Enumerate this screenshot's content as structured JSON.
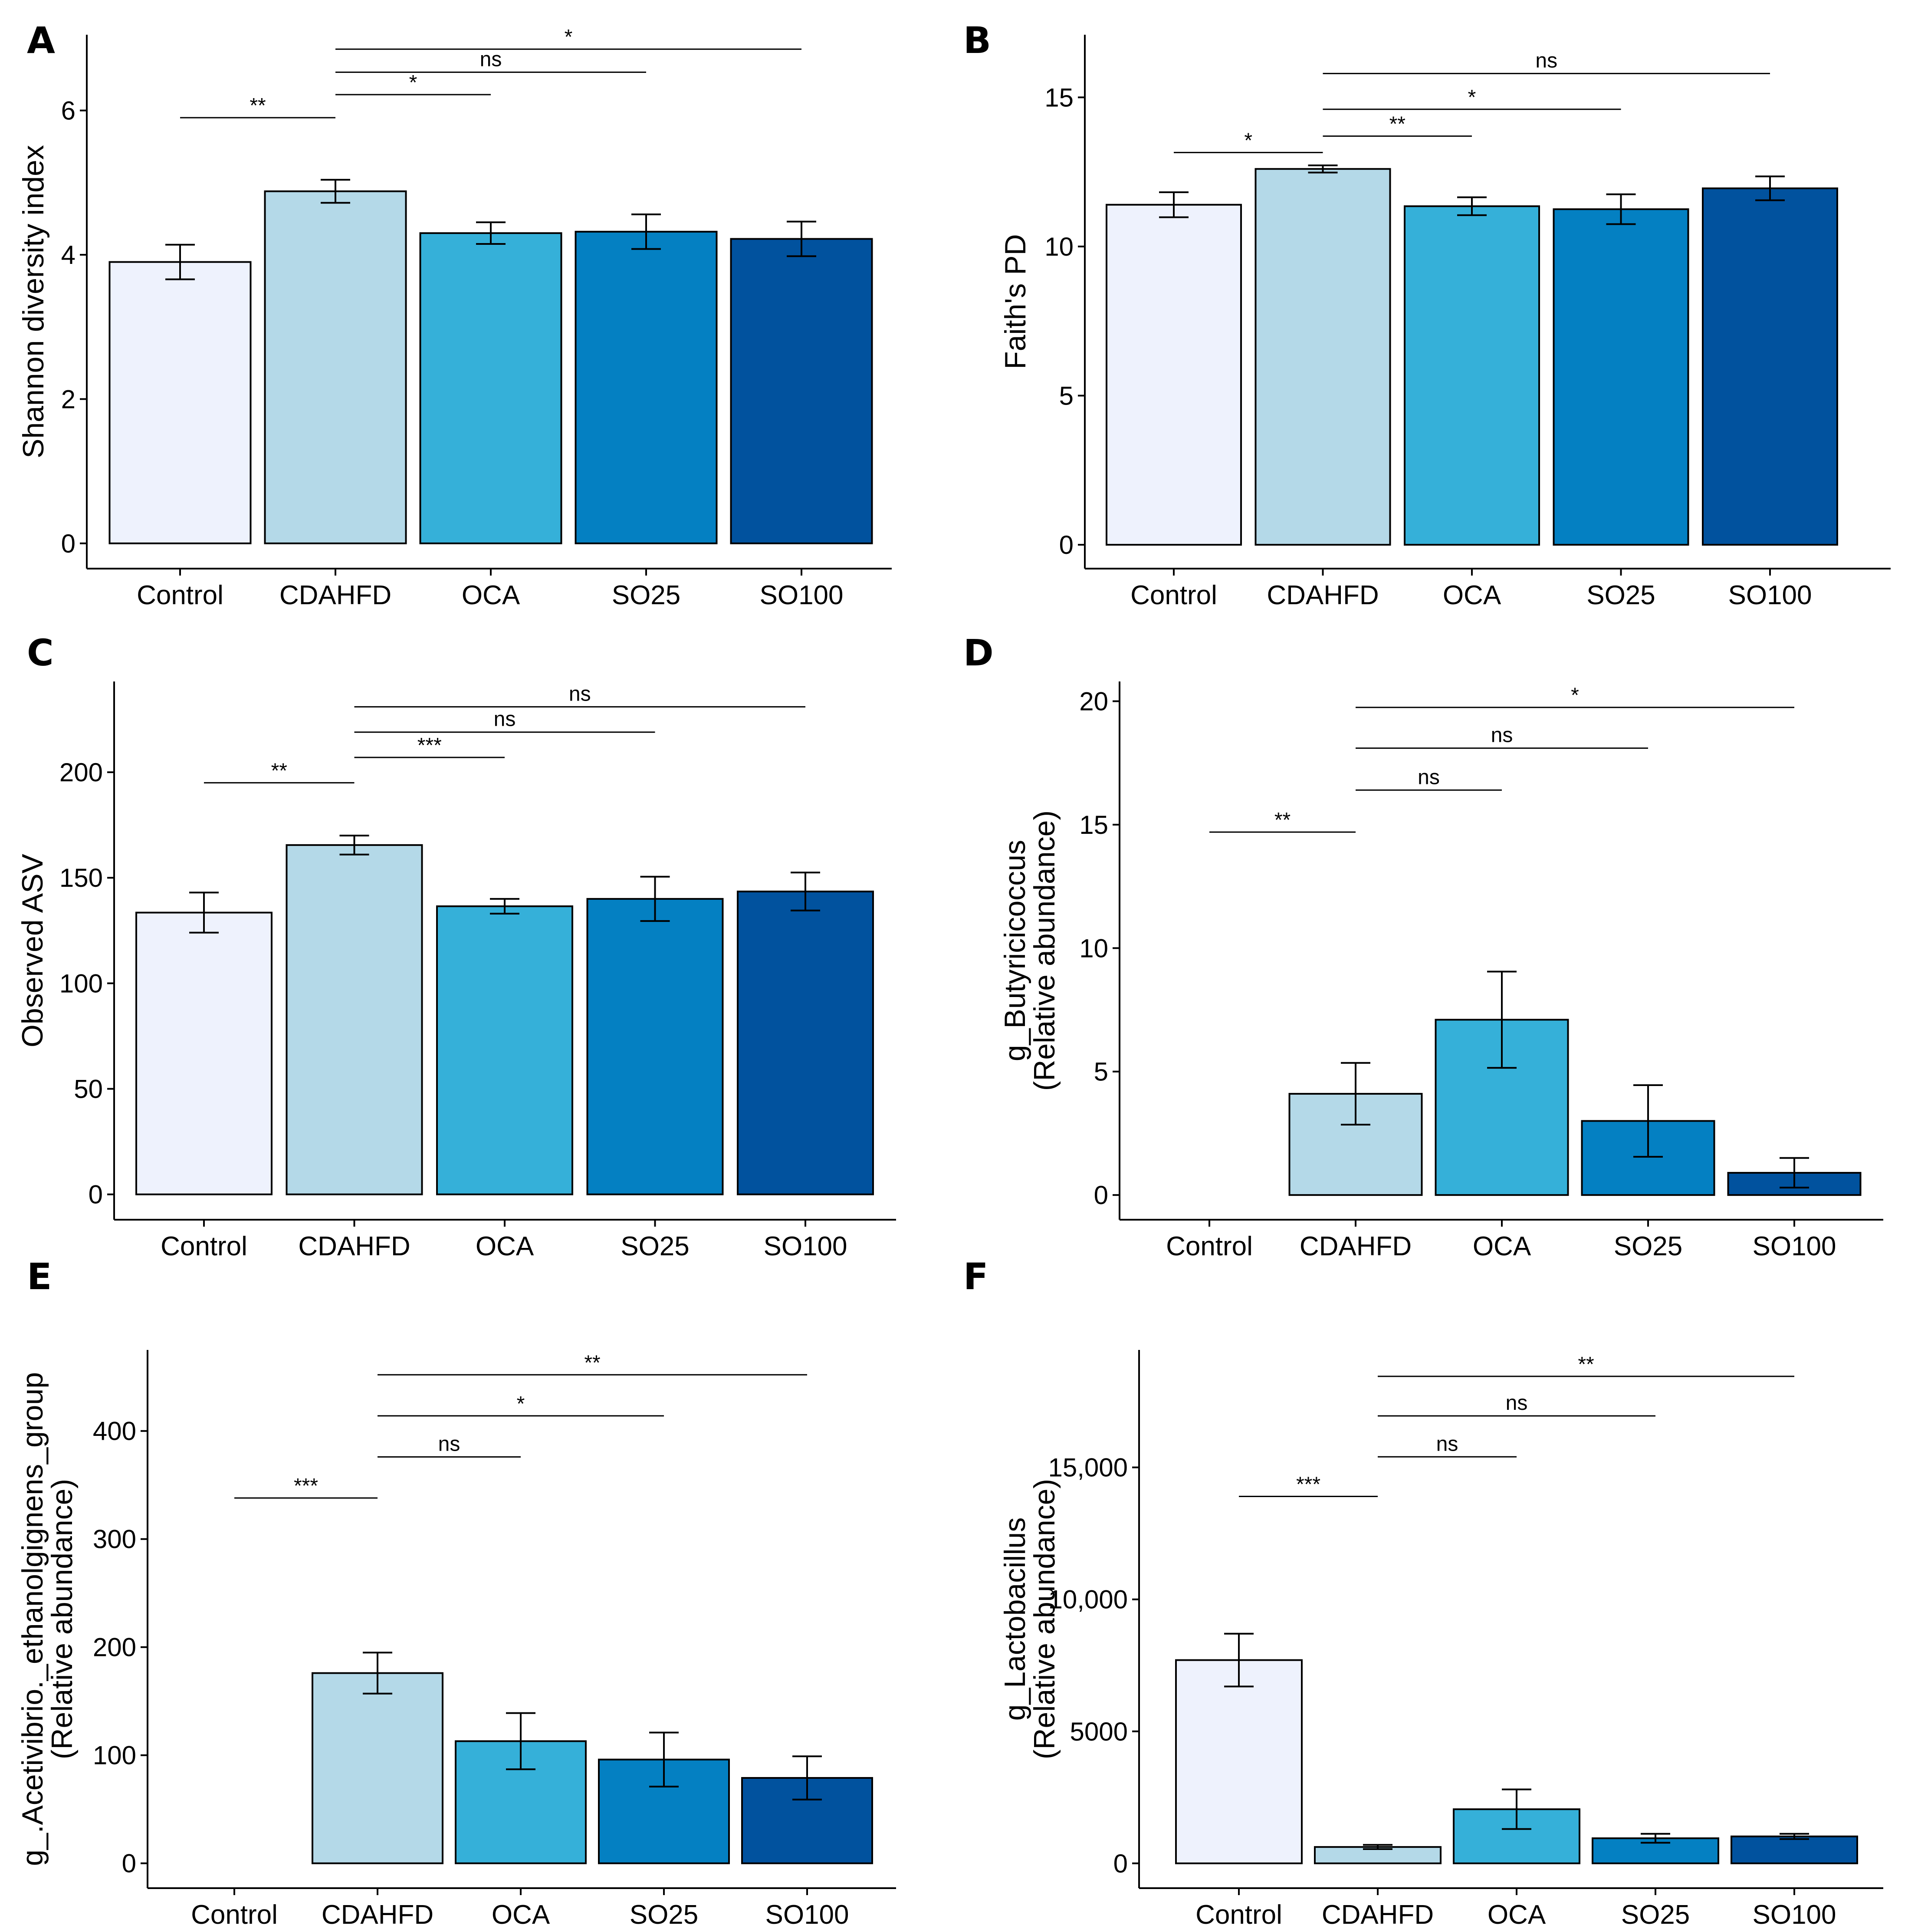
{
  "chart_data": [
    {
      "panel": "A",
      "type": "bar",
      "categories": [
        "Control",
        "CDAHFD",
        "OCA",
        "SO25",
        "SO100"
      ],
      "values": [
        3.9,
        4.88,
        4.3,
        4.32,
        4.22
      ],
      "errors": [
        0.24,
        0.16,
        0.15,
        0.24,
        0.24
      ],
      "ylabel_lines": [
        "Shannon diversity index"
      ],
      "yticks": [
        0,
        2,
        4,
        6
      ],
      "ytick_labels": [
        "0",
        "2",
        "4",
        "6"
      ],
      "ylim": [
        -0.35,
        7.05
      ],
      "colors": [
        "#eef2fd",
        "#b4d9e8",
        "#35b0d9",
        "#0480c2",
        "#01529e"
      ],
      "comparisons": [
        {
          "from": 0,
          "to": 1,
          "y": 5.9,
          "label": "**"
        },
        {
          "from": 1,
          "to": 2,
          "y": 6.22,
          "label": "*"
        },
        {
          "from": 1,
          "to": 3,
          "y": 6.53,
          "label": "ns"
        },
        {
          "from": 1,
          "to": 4,
          "y": 6.85,
          "label": "*"
        }
      ]
    },
    {
      "panel": "B",
      "type": "bar",
      "categories": [
        "Control",
        "CDAHFD",
        "OCA",
        "SO25",
        "SO100"
      ],
      "values": [
        11.4,
        12.6,
        11.35,
        11.25,
        11.95
      ],
      "errors": [
        0.42,
        0.12,
        0.3,
        0.5,
        0.4
      ],
      "ylabel_lines": [
        "Faith's PD"
      ],
      "yticks": [
        0,
        5,
        10,
        15
      ],
      "ytick_labels": [
        "0",
        "5",
        "10",
        "15"
      ],
      "ylim": [
        -0.8,
        17.1
      ],
      "colors": [
        "#eef2fd",
        "#b4d9e8",
        "#35b0d9",
        "#0480c2",
        "#01529e"
      ],
      "comparisons": [
        {
          "from": 0,
          "to": 1,
          "y": 13.15,
          "label": "*"
        },
        {
          "from": 1,
          "to": 2,
          "y": 13.7,
          "label": "**"
        },
        {
          "from": 1,
          "to": 3,
          "y": 14.6,
          "label": "*"
        },
        {
          "from": 1,
          "to": 4,
          "y": 15.8,
          "label": "ns"
        }
      ]
    },
    {
      "panel": "C",
      "type": "bar",
      "categories": [
        "Control",
        "CDAHFD",
        "OCA",
        "SO25",
        "SO100"
      ],
      "values": [
        133.5,
        165.5,
        136.5,
        140,
        143.5
      ],
      "errors": [
        9.5,
        4.5,
        3.5,
        10.5,
        9
      ],
      "ylabel_lines": [
        "Observed ASV"
      ],
      "yticks": [
        0,
        50,
        100,
        150,
        200
      ],
      "ytick_labels": [
        "0",
        "50",
        "100",
        "150",
        "200"
      ],
      "ylim": [
        -12,
        243
      ],
      "colors": [
        "#eef2fd",
        "#b4d9e8",
        "#35b0d9",
        "#0480c2",
        "#01529e"
      ],
      "comparisons": [
        {
          "from": 0,
          "to": 1,
          "y": 195,
          "label": "**"
        },
        {
          "from": 1,
          "to": 2,
          "y": 207,
          "label": "***"
        },
        {
          "from": 1,
          "to": 3,
          "y": 219,
          "label": "ns"
        },
        {
          "from": 1,
          "to": 4,
          "y": 231,
          "label": "ns"
        }
      ]
    },
    {
      "panel": "D",
      "type": "bar",
      "categories": [
        "Control",
        "CDAHFD",
        "OCA",
        "SO25",
        "SO100"
      ],
      "values": [
        0,
        4.1,
        7.1,
        3.0,
        0.9
      ],
      "errors": [
        0,
        1.25,
        1.95,
        1.45,
        0.6
      ],
      "ylabel_lines": [
        "g_Butyricicoccus",
        "(Relative abundance)"
      ],
      "yticks": [
        0,
        5,
        10,
        15,
        20
      ],
      "ytick_labels": [
        "0",
        "5",
        "10",
        "15",
        "20"
      ],
      "ylim": [
        -1,
        20.8
      ],
      "colors": [
        "#eef2fd",
        "#b4d9e8",
        "#35b0d9",
        "#0480c2",
        "#01529e"
      ],
      "comparisons": [
        {
          "from": 0,
          "to": 1,
          "y": 14.7,
          "label": "**"
        },
        {
          "from": 1,
          "to": 2,
          "y": 16.4,
          "label": "ns"
        },
        {
          "from": 1,
          "to": 3,
          "y": 18.1,
          "label": "ns"
        },
        {
          "from": 1,
          "to": 4,
          "y": 19.75,
          "label": "*"
        }
      ]
    },
    {
      "panel": "E",
      "type": "bar",
      "categories": [
        "Control",
        "CDAHFD",
        "OCA",
        "SO25",
        "SO100"
      ],
      "values": [
        0,
        176,
        113,
        96,
        79
      ],
      "errors": [
        0,
        19,
        26,
        25,
        20
      ],
      "ylabel_lines": [
        "g_.Acetivibrio._ethanolgignens_group",
        "(Relative abundance)"
      ],
      "yticks": [
        0,
        100,
        200,
        300,
        400
      ],
      "ytick_labels": [
        "0",
        "100",
        "200",
        "300",
        "400"
      ],
      "ylim": [
        -23,
        475
      ],
      "colors": [
        "#eef2fd",
        "#b4d9e8",
        "#35b0d9",
        "#0480c2",
        "#01529e"
      ],
      "comparisons": [
        {
          "from": 0,
          "to": 1,
          "y": 338,
          "label": "***"
        },
        {
          "from": 1,
          "to": 2,
          "y": 376,
          "label": "ns"
        },
        {
          "from": 1,
          "to": 3,
          "y": 414,
          "label": "*"
        },
        {
          "from": 1,
          "to": 4,
          "y": 452,
          "label": "**"
        }
      ]
    },
    {
      "panel": "F",
      "type": "bar",
      "categories": [
        "Control",
        "CDAHFD",
        "OCA",
        "SO25",
        "SO100"
      ],
      "values": [
        7700,
        620,
        2050,
        950,
        1020
      ],
      "errors": [
        1000,
        80,
        750,
        170,
        100
      ],
      "ylabel_lines": [
        "g_Lactobacillus",
        "(Relative abundance)"
      ],
      "yticks": [
        0,
        5000,
        10000,
        15000
      ],
      "ytick_labels": [
        "0",
        "5000",
        "10,000",
        "15,000"
      ],
      "ylim": [
        -940,
        19450
      ],
      "colors": [
        "#eef2fd",
        "#b4d9e8",
        "#35b0d9",
        "#0480c2",
        "#01529e"
      ],
      "comparisons": [
        {
          "from": 0,
          "to": 1,
          "y": 13900,
          "label": "***"
        },
        {
          "from": 1,
          "to": 2,
          "y": 15400,
          "label": "ns"
        },
        {
          "from": 1,
          "to": 3,
          "y": 16950,
          "label": "ns"
        },
        {
          "from": 1,
          "to": 4,
          "y": 18450,
          "label": "**"
        }
      ]
    }
  ]
}
